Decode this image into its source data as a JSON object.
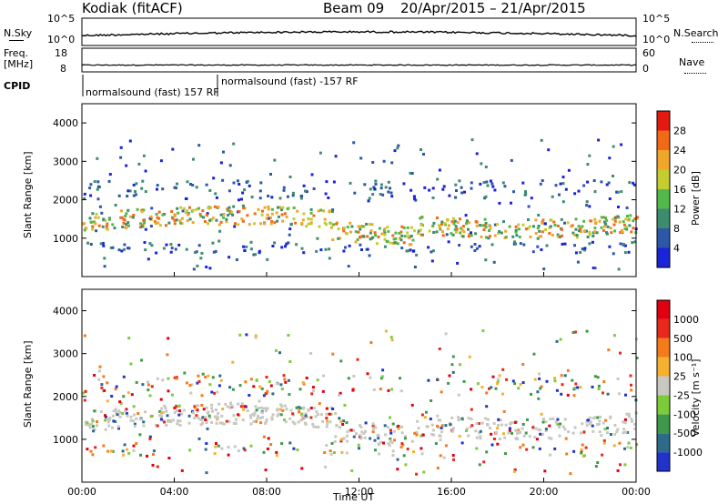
{
  "header": {
    "station": "Kodiak (fitACF)",
    "beam": "Beam 09",
    "dates": "20/Apr/2015 – 21/Apr/2015"
  },
  "strip_panels": {
    "nsky_label": "N.Sky",
    "nsearch_label": "N.Search",
    "freq_label": "Freq.",
    "freq_unit": "[MHz]",
    "nave_label": "Nave",
    "cpid_label": "CPID",
    "nsky_ticks": [
      "10^5",
      "10^0"
    ],
    "nsearch_ticks": [
      "10^5",
      "10^0"
    ],
    "freq_ticks": [
      "18",
      "8"
    ],
    "nave_ticks": [
      "60",
      "0"
    ],
    "cpid_entries": [
      "normalsound (fast) 157 RF",
      "normalsound (fast) -157 RF"
    ]
  },
  "chart_data": [
    {
      "type": "heatmap",
      "title": "",
      "quantity": "Power",
      "xlabel": "Time UT",
      "ylabel": "Slant Range [km]",
      "xlim": [
        "00:00",
        "24:00"
      ],
      "ylim": [
        0,
        4500
      ],
      "x_ticks": [
        "00:00",
        "04:00",
        "08:00",
        "12:00",
        "16:00",
        "20:00",
        "00:00"
      ],
      "y_ticks": [
        1000,
        2000,
        3000,
        4000
      ],
      "colorbar": {
        "label": "Power [dB]",
        "ticks": [
          4,
          8,
          12,
          16,
          20,
          24,
          28
        ],
        "colors": [
          "#1a23d8",
          "#2d57a8",
          "#3e8c6e",
          "#52b84a",
          "#c5cc30",
          "#f0a62a",
          "#f26a18",
          "#e21a10"
        ]
      }
    },
    {
      "type": "heatmap",
      "title": "",
      "quantity": "Velocity",
      "xlabel": "Time UT",
      "ylabel": "Slant Range [km]",
      "xlim": [
        "00:00",
        "24:00"
      ],
      "ylim": [
        0,
        4500
      ],
      "x_ticks": [
        "00:00",
        "04:00",
        "08:00",
        "12:00",
        "16:00",
        "20:00",
        "00:00"
      ],
      "y_ticks": [
        1000,
        2000,
        3000,
        4000
      ],
      "colorbar": {
        "label": "Velocity [m s⁻¹]",
        "ticks": [
          1000,
          500,
          100,
          25,
          -25,
          -100,
          -500,
          -1000
        ],
        "colors": [
          "#2233cc",
          "#2d6b8a",
          "#3e9a4a",
          "#7ccc3a",
          "#c8c8c0",
          "#f5b030",
          "#f57a1a",
          "#e8281a",
          "#e00010"
        ]
      }
    }
  ],
  "x_axis_title": "Time UT"
}
